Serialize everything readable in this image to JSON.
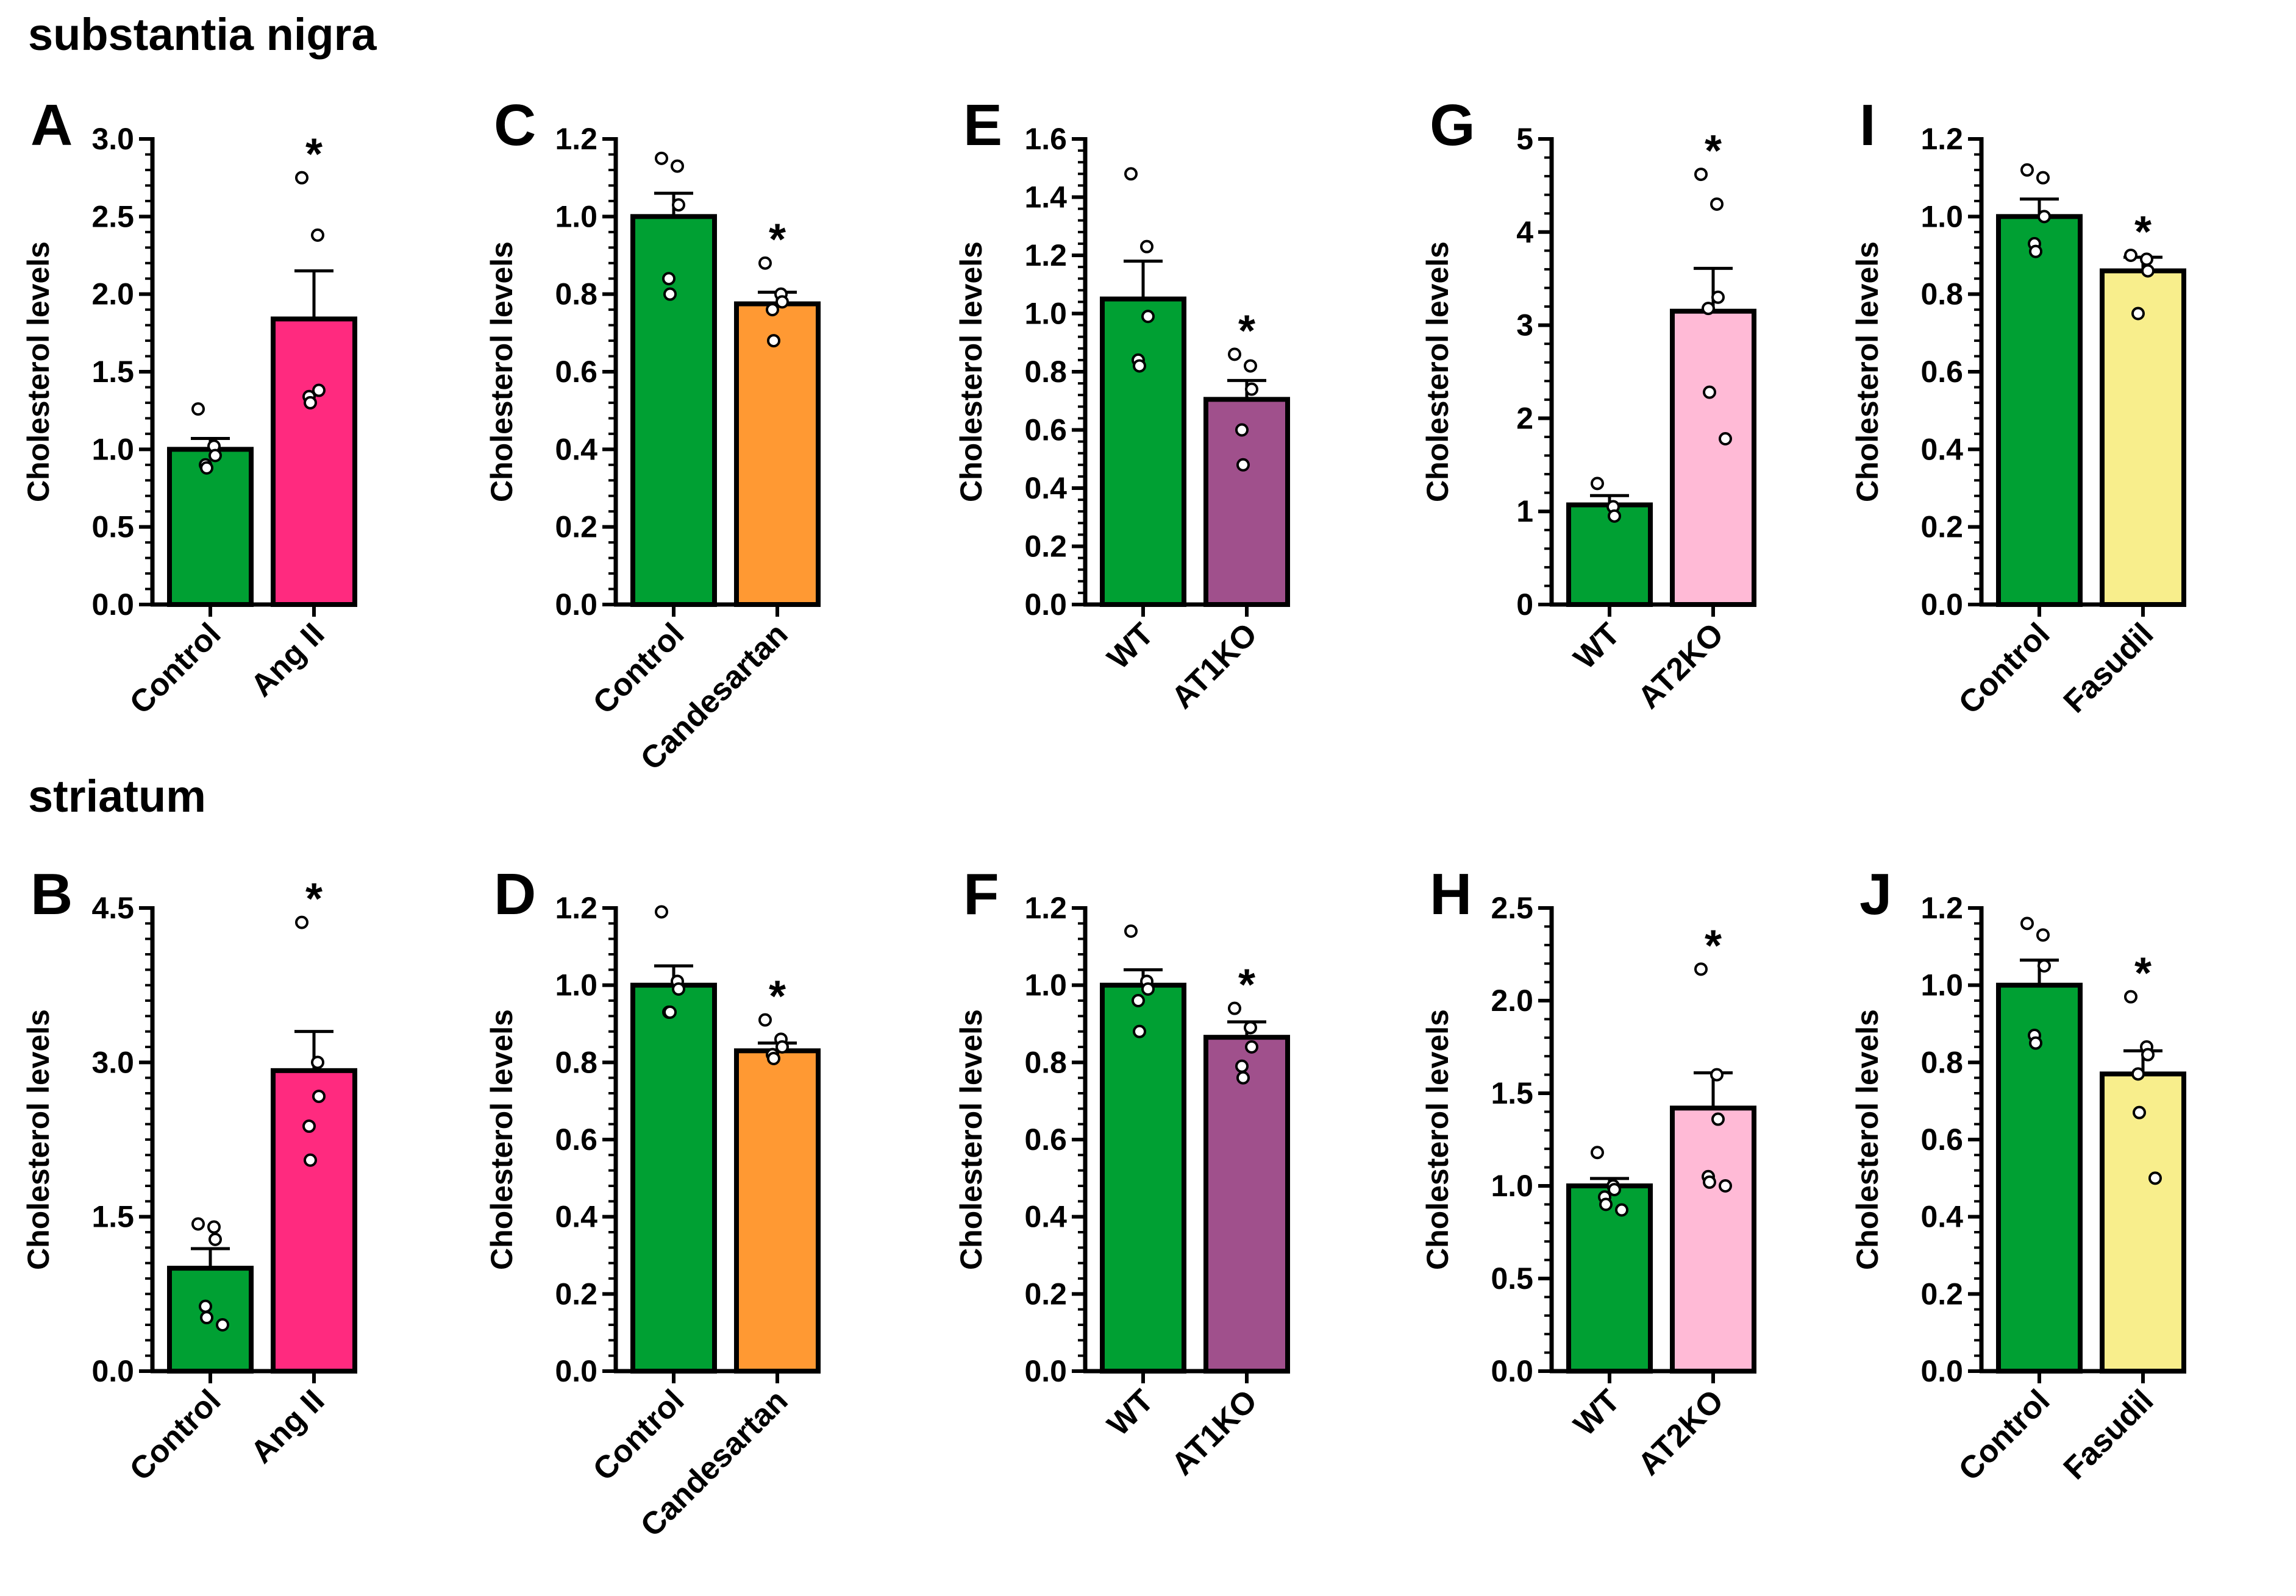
{
  "sections": [
    {
      "title": "substantia nigra"
    },
    {
      "title": "striatum"
    }
  ],
  "colors": {
    "control": "#00a033",
    "angII": "#ff2a7f",
    "candesartan": "#ff9933",
    "at1ko": "#a0508c",
    "at2ko": "#ffbad6",
    "fasudil": "#f8ee8c",
    "outline": "#000000"
  },
  "chart_data": [
    {
      "panel": "A",
      "type": "bar",
      "ylabel": "Cholesterol levels",
      "ylim": [
        0,
        3.0
      ],
      "ticks": [
        "0.0",
        "0.5",
        "1.0",
        "1.5",
        "2.0",
        "2.5",
        "3.0"
      ],
      "minor_ticks": 4,
      "categories": [
        "Control",
        "Ang II"
      ],
      "values": [
        1.0,
        1.84
      ],
      "sem": [
        0.07,
        0.31
      ],
      "colors": [
        "control",
        "angII"
      ],
      "points": [
        [
          1.26,
          1.02,
          0.96,
          0.9,
          0.88
        ],
        [
          2.75,
          2.38,
          1.38,
          1.34,
          1.3
        ]
      ],
      "significance": "*"
    },
    {
      "panel": "B",
      "type": "bar",
      "ylabel": "Cholesterol levels",
      "ylim": [
        0,
        4.5
      ],
      "ticks": [
        "0.0",
        "1.5",
        "3.0",
        "4.5"
      ],
      "minor_ticks": 9,
      "categories": [
        "Control",
        "Ang II"
      ],
      "values": [
        1.0,
        2.92
      ],
      "sem": [
        0.19,
        0.38
      ],
      "colors": [
        "control",
        "angII"
      ],
      "points": [
        [
          1.43,
          1.4,
          1.28,
          0.63,
          0.52,
          0.45
        ],
        [
          4.36,
          3.0,
          2.67,
          2.38,
          2.05
        ]
      ],
      "significance": "*"
    },
    {
      "panel": "C",
      "type": "bar",
      "ylabel": "Cholesterol levels",
      "ylim": [
        0,
        1.2
      ],
      "ticks": [
        "0.0",
        "0.2",
        "0.4",
        "0.6",
        "0.8",
        "1.0",
        "1.2"
      ],
      "minor_ticks": 4,
      "categories": [
        "Control",
        "Candesartan"
      ],
      "values": [
        1.0,
        0.775
      ],
      "sem": [
        0.06,
        0.03
      ],
      "colors": [
        "control",
        "candesartan"
      ],
      "points": [
        [
          1.15,
          1.13,
          1.03,
          0.84,
          0.8
        ],
        [
          0.88,
          0.8,
          0.78,
          0.76,
          0.68
        ]
      ],
      "significance": "*"
    },
    {
      "panel": "D",
      "type": "bar",
      "ylabel": "Cholesterol levels",
      "ylim": [
        0,
        1.2
      ],
      "ticks": [
        "0.0",
        "0.2",
        "0.4",
        "0.6",
        "0.8",
        "1.0",
        "1.2"
      ],
      "minor_ticks": 4,
      "categories": [
        "Control",
        "Candesartan"
      ],
      "values": [
        1.0,
        0.83
      ],
      "sem": [
        0.05,
        0.02
      ],
      "colors": [
        "control",
        "candesartan"
      ],
      "points": [
        [
          1.19,
          1.01,
          0.99,
          0.93,
          0.93
        ],
        [
          0.91,
          0.86,
          0.84,
          0.82,
          0.81
        ]
      ],
      "significance": "*"
    },
    {
      "panel": "E",
      "type": "bar",
      "ylabel": "Cholesterol levels",
      "ylim": [
        0,
        1.6
      ],
      "ticks": [
        "0.0",
        "0.2",
        "0.4",
        "0.6",
        "0.8",
        "1.0",
        "1.2",
        "1.4",
        "1.6"
      ],
      "minor_ticks": 4,
      "categories": [
        "WT",
        "AT1KO"
      ],
      "values": [
        1.05,
        0.705
      ],
      "sem": [
        0.13,
        0.065
      ],
      "colors": [
        "control",
        "at1ko"
      ],
      "points": [
        [
          1.48,
          1.23,
          0.99,
          0.84,
          0.82
        ],
        [
          0.86,
          0.82,
          0.74,
          0.6,
          0.48
        ]
      ],
      "significance": "*"
    },
    {
      "panel": "F",
      "type": "bar",
      "ylabel": "Cholesterol levels",
      "ylim": [
        0,
        1.2
      ],
      "ticks": [
        "0.0",
        "0.2",
        "0.4",
        "0.6",
        "0.8",
        "1.0",
        "1.2"
      ],
      "minor_ticks": 4,
      "categories": [
        "WT",
        "AT1KO"
      ],
      "values": [
        1.0,
        0.865
      ],
      "sem": [
        0.04,
        0.04
      ],
      "colors": [
        "control",
        "at1ko"
      ],
      "points": [
        [
          1.14,
          1.01,
          0.99,
          0.96,
          0.88
        ],
        [
          0.94,
          0.89,
          0.84,
          0.79,
          0.76
        ]
      ],
      "significance": "*"
    },
    {
      "panel": "G",
      "type": "bar",
      "ylabel": "Cholesterol levels",
      "ylim": [
        0,
        5
      ],
      "ticks": [
        "0",
        "1",
        "2",
        "3",
        "4",
        "5"
      ],
      "minor_ticks": 4,
      "categories": [
        "WT",
        "AT2KO"
      ],
      "values": [
        1.07,
        3.15
      ],
      "sem": [
        0.1,
        0.46
      ],
      "colors": [
        "control",
        "at2ko"
      ],
      "points": [
        [
          1.3,
          1.05,
          0.95
        ],
        [
          4.62,
          4.3,
          3.3,
          3.18,
          2.28,
          1.78
        ]
      ],
      "significance": "*"
    },
    {
      "panel": "H",
      "type": "bar",
      "ylabel": "Cholesterol levels",
      "ylim": [
        0,
        2.5
      ],
      "ticks": [
        "0.0",
        "0.5",
        "1.0",
        "1.5",
        "2.0",
        "2.5"
      ],
      "minor_ticks": 4,
      "categories": [
        "WT",
        "AT2KO"
      ],
      "values": [
        1.0,
        1.42
      ],
      "sem": [
        0.04,
        0.19
      ],
      "colors": [
        "control",
        "at2ko"
      ],
      "points": [
        [
          1.18,
          1.0,
          0.98,
          0.94,
          0.9,
          0.87
        ],
        [
          2.17,
          1.6,
          1.36,
          1.05,
          1.02,
          1.0
        ]
      ],
      "significance": "*"
    },
    {
      "panel": "I",
      "type": "bar",
      "ylabel": "Cholesterol levels",
      "ylim": [
        0,
        1.2
      ],
      "ticks": [
        "0.0",
        "0.2",
        "0.4",
        "0.6",
        "0.8",
        "1.0",
        "1.2"
      ],
      "minor_ticks": 4,
      "categories": [
        "Control",
        "Fasudil"
      ],
      "values": [
        1.0,
        0.86
      ],
      "sem": [
        0.045,
        0.035
      ],
      "colors": [
        "control",
        "fasudil"
      ],
      "points": [
        [
          1.12,
          1.1,
          1.0,
          0.93,
          0.91
        ],
        [
          0.9,
          0.89,
          0.86,
          0.75
        ]
      ],
      "significance": "*"
    },
    {
      "panel": "J",
      "type": "bar",
      "ylabel": "Cholesterol levels",
      "ylim": [
        0,
        1.2
      ],
      "ticks": [
        "0.0",
        "0.2",
        "0.4",
        "0.6",
        "0.8",
        "1.0",
        "1.2"
      ],
      "minor_ticks": 4,
      "categories": [
        "Control",
        "Fasudil"
      ],
      "values": [
        1.0,
        0.77
      ],
      "sem": [
        0.065,
        0.06
      ],
      "colors": [
        "control",
        "fasudil"
      ],
      "points": [
        [
          1.16,
          1.13,
          1.05,
          0.87,
          0.85
        ],
        [
          0.97,
          0.84,
          0.82,
          0.77,
          0.67,
          0.5
        ]
      ],
      "significance": "*"
    }
  ]
}
